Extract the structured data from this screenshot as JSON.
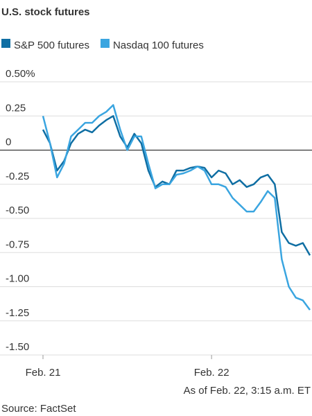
{
  "chart_data": {
    "type": "line",
    "title": "U.S. stock futures",
    "annotation": "As of Feb. 22, 3:15 a.m. ET",
    "source": "Source: FactSet",
    "x": [
      0,
      1,
      2,
      3,
      4,
      5,
      6,
      7,
      8,
      9,
      10,
      11,
      12,
      13,
      14,
      15,
      16,
      17,
      18,
      19,
      20,
      21,
      22,
      23,
      24,
      25,
      26,
      27,
      28,
      29,
      30,
      31,
      32,
      33,
      34,
      35,
      36,
      37,
      38
    ],
    "series": [
      {
        "name": "S&P 500 futures",
        "color": "#0f6ea3",
        "values": [
          0.15,
          0.05,
          -0.15,
          -0.08,
          0.05,
          0.12,
          0.15,
          0.13,
          0.18,
          0.22,
          0.25,
          0.1,
          0.02,
          0.12,
          0.05,
          -0.15,
          -0.27,
          -0.23,
          -0.25,
          -0.15,
          -0.15,
          -0.13,
          -0.12,
          -0.13,
          -0.2,
          -0.15,
          -0.17,
          -0.25,
          -0.22,
          -0.27,
          -0.25,
          -0.2,
          -0.18,
          -0.25,
          -0.6,
          -0.68,
          -0.7,
          -0.68,
          -0.77
        ]
      },
      {
        "name": "Nasdaq 100 futures",
        "color": "#3aa5e0",
        "values": [
          0.25,
          0.05,
          -0.2,
          -0.1,
          0.1,
          0.15,
          0.2,
          0.2,
          0.25,
          0.28,
          0.33,
          0.15,
          0.0,
          0.1,
          0.1,
          -0.1,
          -0.28,
          -0.25,
          -0.25,
          -0.18,
          -0.17,
          -0.15,
          -0.12,
          -0.15,
          -0.25,
          -0.25,
          -0.27,
          -0.35,
          -0.4,
          -0.45,
          -0.45,
          -0.38,
          -0.3,
          -0.35,
          -0.8,
          -1.0,
          -1.08,
          -1.1,
          -1.17
        ]
      }
    ],
    "xlim": [
      0,
      38.3
    ],
    "xticks": [
      {
        "value": 0,
        "label": "Feb. 21"
      },
      {
        "value": 24,
        "label": "Feb. 22"
      }
    ],
    "ylim": [
      -1.5,
      0.5
    ],
    "yticks": [
      {
        "value": 0.5,
        "label": "0.50%"
      },
      0.25,
      0,
      -0.25,
      {
        "value": -0.5,
        "label": "-0.50"
      },
      -0.75,
      {
        "value": -1.0,
        "label": "-1.00"
      },
      -1.25,
      {
        "value": -1.5,
        "label": "-1.50"
      }
    ],
    "grid": true
  }
}
